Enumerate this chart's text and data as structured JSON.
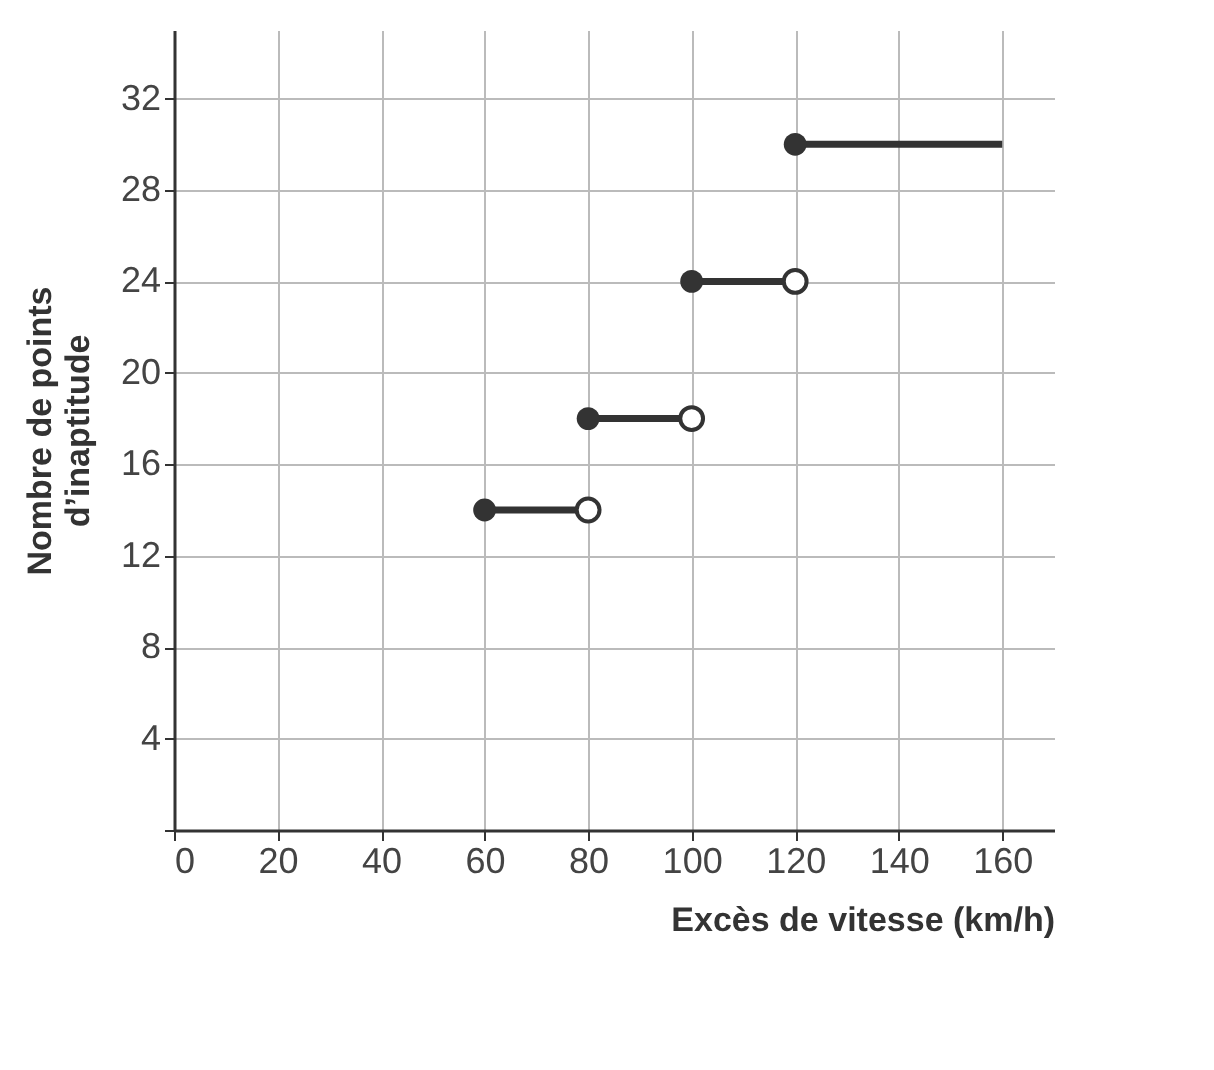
{
  "chart_data": {
    "type": "line",
    "xlabel": "Excès de vitesse (km/h)",
    "ylabel": "Nombre de points\nd’inaptitude",
    "series": [
      {
        "color": "#333333",
        "x": [
          60,
          80
        ],
        "values": [
          14,
          14
        ]
      },
      {
        "color": "#333333",
        "x": [
          80,
          100
        ],
        "values": [
          18,
          18
        ]
      },
      {
        "color": "#333333",
        "x": [
          100,
          120
        ],
        "values": [
          24,
          24
        ]
      },
      {
        "color": "#333333",
        "x": [
          120,
          160
        ],
        "values": [
          30,
          30
        ]
      }
    ],
    "xlim": [
      0,
      170
    ],
    "ylim": [
      0,
      35
    ],
    "xticks": [
      0,
      20,
      40,
      60,
      80,
      100,
      120,
      140,
      160
    ],
    "yticks": [
      {
        "value": 0,
        "label": null
      },
      4,
      8,
      12,
      16,
      20,
      24,
      28,
      32
    ],
    "grid": true,
    "marker": "circle",
    "legend": false
  }
}
